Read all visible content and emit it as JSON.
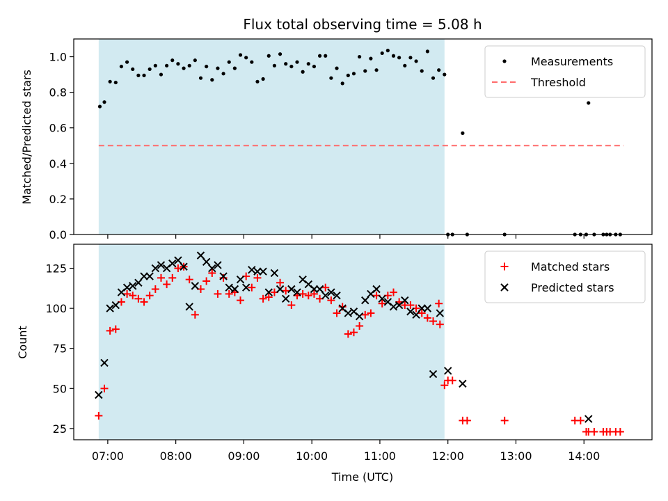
{
  "chart_data": {
    "title": "Flux total observing time = 5.08 h",
    "shaded_interval": {
      "start": "06:52",
      "end": "11:57",
      "color": "#add8e6"
    },
    "x_ticks": [
      "07:00",
      "08:00",
      "09:00",
      "10:00",
      "11:00",
      "12:00",
      "13:00",
      "14:00"
    ],
    "x_range": [
      "06:30",
      "15:00"
    ],
    "xlabel": "Time (UTC)",
    "top": {
      "type": "scatter",
      "ylabel": "Matched/Predicted stars",
      "ylim": [
        0,
        1.1
      ],
      "y_ticks": [
        "0.0",
        "0.2",
        "0.4",
        "0.6",
        "0.8",
        "1.0"
      ],
      "threshold": {
        "name": "Threshold",
        "value": 0.5,
        "x_start": "06:52",
        "x_end": "14:35",
        "color": "#ff6b6b"
      },
      "series": [
        {
          "name": "Measurements",
          "marker": "dot",
          "color": "#000000",
          "points": [
            [
              "06:53",
              0.72
            ],
            [
              "06:57",
              0.745
            ],
            [
              "07:02",
              0.86
            ],
            [
              "07:07",
              0.855
            ],
            [
              "07:12",
              0.945
            ],
            [
              "07:17",
              0.97
            ],
            [
              "07:22",
              0.93
            ],
            [
              "07:27",
              0.895
            ],
            [
              "07:32",
              0.895
            ],
            [
              "07:37",
              0.93
            ],
            [
              "07:42",
              0.95
            ],
            [
              "07:47",
              0.9
            ],
            [
              "07:52",
              0.95
            ],
            [
              "07:57",
              0.98
            ],
            [
              "08:02",
              0.96
            ],
            [
              "08:07",
              0.935
            ],
            [
              "08:12",
              0.95
            ],
            [
              "08:17",
              0.98
            ],
            [
              "08:22",
              0.88
            ],
            [
              "08:27",
              0.945
            ],
            [
              "08:32",
              0.87
            ],
            [
              "08:37",
              0.935
            ],
            [
              "08:42",
              0.905
            ],
            [
              "08:47",
              0.97
            ],
            [
              "08:52",
              0.935
            ],
            [
              "08:57",
              1.01
            ],
            [
              "09:02",
              0.995
            ],
            [
              "09:07",
              0.97
            ],
            [
              "09:12",
              0.86
            ],
            [
              "09:17",
              0.875
            ],
            [
              "09:22",
              1.005
            ],
            [
              "09:27",
              0.95
            ],
            [
              "09:32",
              1.015
            ],
            [
              "09:37",
              0.96
            ],
            [
              "09:42",
              0.945
            ],
            [
              "09:47",
              0.97
            ],
            [
              "09:52",
              0.915
            ],
            [
              "09:57",
              0.96
            ],
            [
              "10:02",
              0.945
            ],
            [
              "10:07",
              1.005
            ],
            [
              "10:12",
              1.005
            ],
            [
              "10:17",
              0.88
            ],
            [
              "10:22",
              0.935
            ],
            [
              "10:27",
              0.85
            ],
            [
              "10:32",
              0.895
            ],
            [
              "10:37",
              0.905
            ],
            [
              "10:42",
              1.0
            ],
            [
              "10:47",
              0.92
            ],
            [
              "10:52",
              0.99
            ],
            [
              "10:57",
              0.925
            ],
            [
              "11:02",
              1.02
            ],
            [
              "11:07",
              1.035
            ],
            [
              "11:12",
              1.005
            ],
            [
              "11:17",
              0.995
            ],
            [
              "11:22",
              0.95
            ],
            [
              "11:27",
              0.995
            ],
            [
              "11:32",
              0.975
            ],
            [
              "11:37",
              0.92
            ],
            [
              "11:42",
              1.03
            ],
            [
              "11:47",
              0.88
            ],
            [
              "11:52",
              0.925
            ],
            [
              "11:57",
              0.9
            ],
            [
              "12:00",
              0.0
            ],
            [
              "12:04",
              0.0
            ],
            [
              "12:13",
              0.57
            ],
            [
              "12:17",
              0.0
            ],
            [
              "12:50",
              0.0
            ],
            [
              "13:52",
              0.0
            ],
            [
              "13:57",
              0.0
            ],
            [
              "14:02",
              0.0
            ],
            [
              "14:04",
              0.74
            ],
            [
              "14:09",
              0.0
            ],
            [
              "14:17",
              0.0
            ],
            [
              "14:20",
              0.0
            ],
            [
              "14:23",
              0.0
            ],
            [
              "14:28",
              0.0
            ],
            [
              "14:32",
              0.0
            ]
          ]
        }
      ],
      "legend_position": "top-right"
    },
    "bottom": {
      "type": "scatter",
      "ylabel": "Count",
      "ylim": [
        18,
        140
      ],
      "y_ticks": [
        "25",
        "50",
        "75",
        "100",
        "125"
      ],
      "series": [
        {
          "name": "Matched stars",
          "marker": "plus",
          "color": "#ff0000",
          "points": [
            [
              "06:52",
              33
            ],
            [
              "06:57",
              50
            ],
            [
              "07:02",
              86
            ],
            [
              "07:07",
              87
            ],
            [
              "07:12",
              104
            ],
            [
              "07:17",
              109
            ],
            [
              "07:22",
              108
            ],
            [
              "07:27",
              106
            ],
            [
              "07:32",
              104
            ],
            [
              "07:37",
              108
            ],
            [
              "07:42",
              112
            ],
            [
              "07:47",
              119
            ],
            [
              "07:52",
              115
            ],
            [
              "07:57",
              119
            ],
            [
              "08:02",
              125
            ],
            [
              "08:07",
              126
            ],
            [
              "08:12",
              118
            ],
            [
              "08:17",
              96
            ],
            [
              "08:22",
              112
            ],
            [
              "08:27",
              117
            ],
            [
              "08:32",
              122
            ],
            [
              "08:37",
              109
            ],
            [
              "08:42",
              119
            ],
            [
              "08:47",
              109
            ],
            [
              "08:52",
              110
            ],
            [
              "08:57",
              105
            ],
            [
              "09:02",
              120
            ],
            [
              "09:07",
              113
            ],
            [
              "09:12",
              119
            ],
            [
              "09:17",
              106
            ],
            [
              "09:22",
              107
            ],
            [
              "09:27",
              110
            ],
            [
              "09:32",
              116
            ],
            [
              "09:37",
              111
            ],
            [
              "09:42",
              102
            ],
            [
              "09:47",
              108
            ],
            [
              "09:52",
              109
            ],
            [
              "09:57",
              108
            ],
            [
              "10:02",
              109
            ],
            [
              "10:07",
              106
            ],
            [
              "10:12",
              113
            ],
            [
              "10:17",
              105
            ],
            [
              "10:22",
              97
            ],
            [
              "10:27",
              101
            ],
            [
              "10:32",
              84
            ],
            [
              "10:37",
              85
            ],
            [
              "10:42",
              89
            ],
            [
              "10:47",
              96
            ],
            [
              "10:52",
              97
            ],
            [
              "10:57",
              108
            ],
            [
              "11:02",
              103
            ],
            [
              "11:07",
              108
            ],
            [
              "11:12",
              110
            ],
            [
              "11:17",
              104
            ],
            [
              "11:22",
              102
            ],
            [
              "11:27",
              102
            ],
            [
              "11:32",
              100
            ],
            [
              "11:37",
              97
            ],
            [
              "11:42",
              94
            ],
            [
              "11:47",
              92
            ],
            [
              "11:52",
              103
            ],
            [
              "11:57",
              52
            ],
            [
              "11:53",
              90
            ],
            [
              "12:00",
              55
            ],
            [
              "12:04",
              55
            ],
            [
              "12:13",
              30
            ],
            [
              "12:17",
              30
            ],
            [
              "12:50",
              30
            ],
            [
              "13:52",
              30
            ],
            [
              "13:57",
              30
            ],
            [
              "14:02",
              23
            ],
            [
              "14:04",
              23
            ],
            [
              "14:09",
              23
            ],
            [
              "14:17",
              23
            ],
            [
              "14:20",
              23
            ],
            [
              "14:23",
              23
            ],
            [
              "14:28",
              23
            ],
            [
              "14:32",
              23
            ]
          ]
        },
        {
          "name": "Predicted stars",
          "marker": "x",
          "color": "#000000",
          "points": [
            [
              "06:52",
              46
            ],
            [
              "06:57",
              66
            ],
            [
              "07:02",
              100
            ],
            [
              "07:07",
              102
            ],
            [
              "07:12",
              110
            ],
            [
              "07:17",
              113
            ],
            [
              "07:22",
              114
            ],
            [
              "07:27",
              116
            ],
            [
              "07:32",
              120
            ],
            [
              "07:37",
              120
            ],
            [
              "07:42",
              125
            ],
            [
              "07:47",
              127
            ],
            [
              "07:52",
              125
            ],
            [
              "07:57",
              128
            ],
            [
              "08:02",
              130
            ],
            [
              "08:07",
              126
            ],
            [
              "08:12",
              101
            ],
            [
              "08:17",
              114
            ],
            [
              "08:22",
              133
            ],
            [
              "08:27",
              129
            ],
            [
              "08:32",
              125
            ],
            [
              "08:37",
              127
            ],
            [
              "08:42",
              120
            ],
            [
              "08:47",
              113
            ],
            [
              "08:52",
              112
            ],
            [
              "08:57",
              118
            ],
            [
              "09:02",
              113
            ],
            [
              "09:07",
              124
            ],
            [
              "09:12",
              123
            ],
            [
              "09:17",
              123
            ],
            [
              "09:22",
              110
            ],
            [
              "09:27",
              122
            ],
            [
              "09:32",
              112
            ],
            [
              "09:37",
              106
            ],
            [
              "09:42",
              112
            ],
            [
              "09:47",
              110
            ],
            [
              "09:52",
              118
            ],
            [
              "09:57",
              115
            ],
            [
              "10:02",
              112
            ],
            [
              "10:07",
              112
            ],
            [
              "10:12",
              108
            ],
            [
              "10:17",
              110
            ],
            [
              "10:22",
              108
            ],
            [
              "10:27",
              100
            ],
            [
              "10:32",
              97
            ],
            [
              "10:37",
              98
            ],
            [
              "10:42",
              95
            ],
            [
              "10:47",
              105
            ],
            [
              "10:52",
              109
            ],
            [
              "10:57",
              112
            ],
            [
              "11:02",
              106
            ],
            [
              "11:07",
              104
            ],
            [
              "11:12",
              101
            ],
            [
              "11:17",
              102
            ],
            [
              "11:22",
              105
            ],
            [
              "11:27",
              98
            ],
            [
              "11:32",
              96
            ],
            [
              "11:37",
              100
            ],
            [
              "11:42",
              100
            ],
            [
              "11:47",
              59
            ],
            [
              "11:53",
              97
            ],
            [
              "12:00",
              61
            ],
            [
              "12:13",
              53
            ],
            [
              "14:04",
              31
            ]
          ]
        }
      ],
      "legend_position": "top-right"
    }
  }
}
